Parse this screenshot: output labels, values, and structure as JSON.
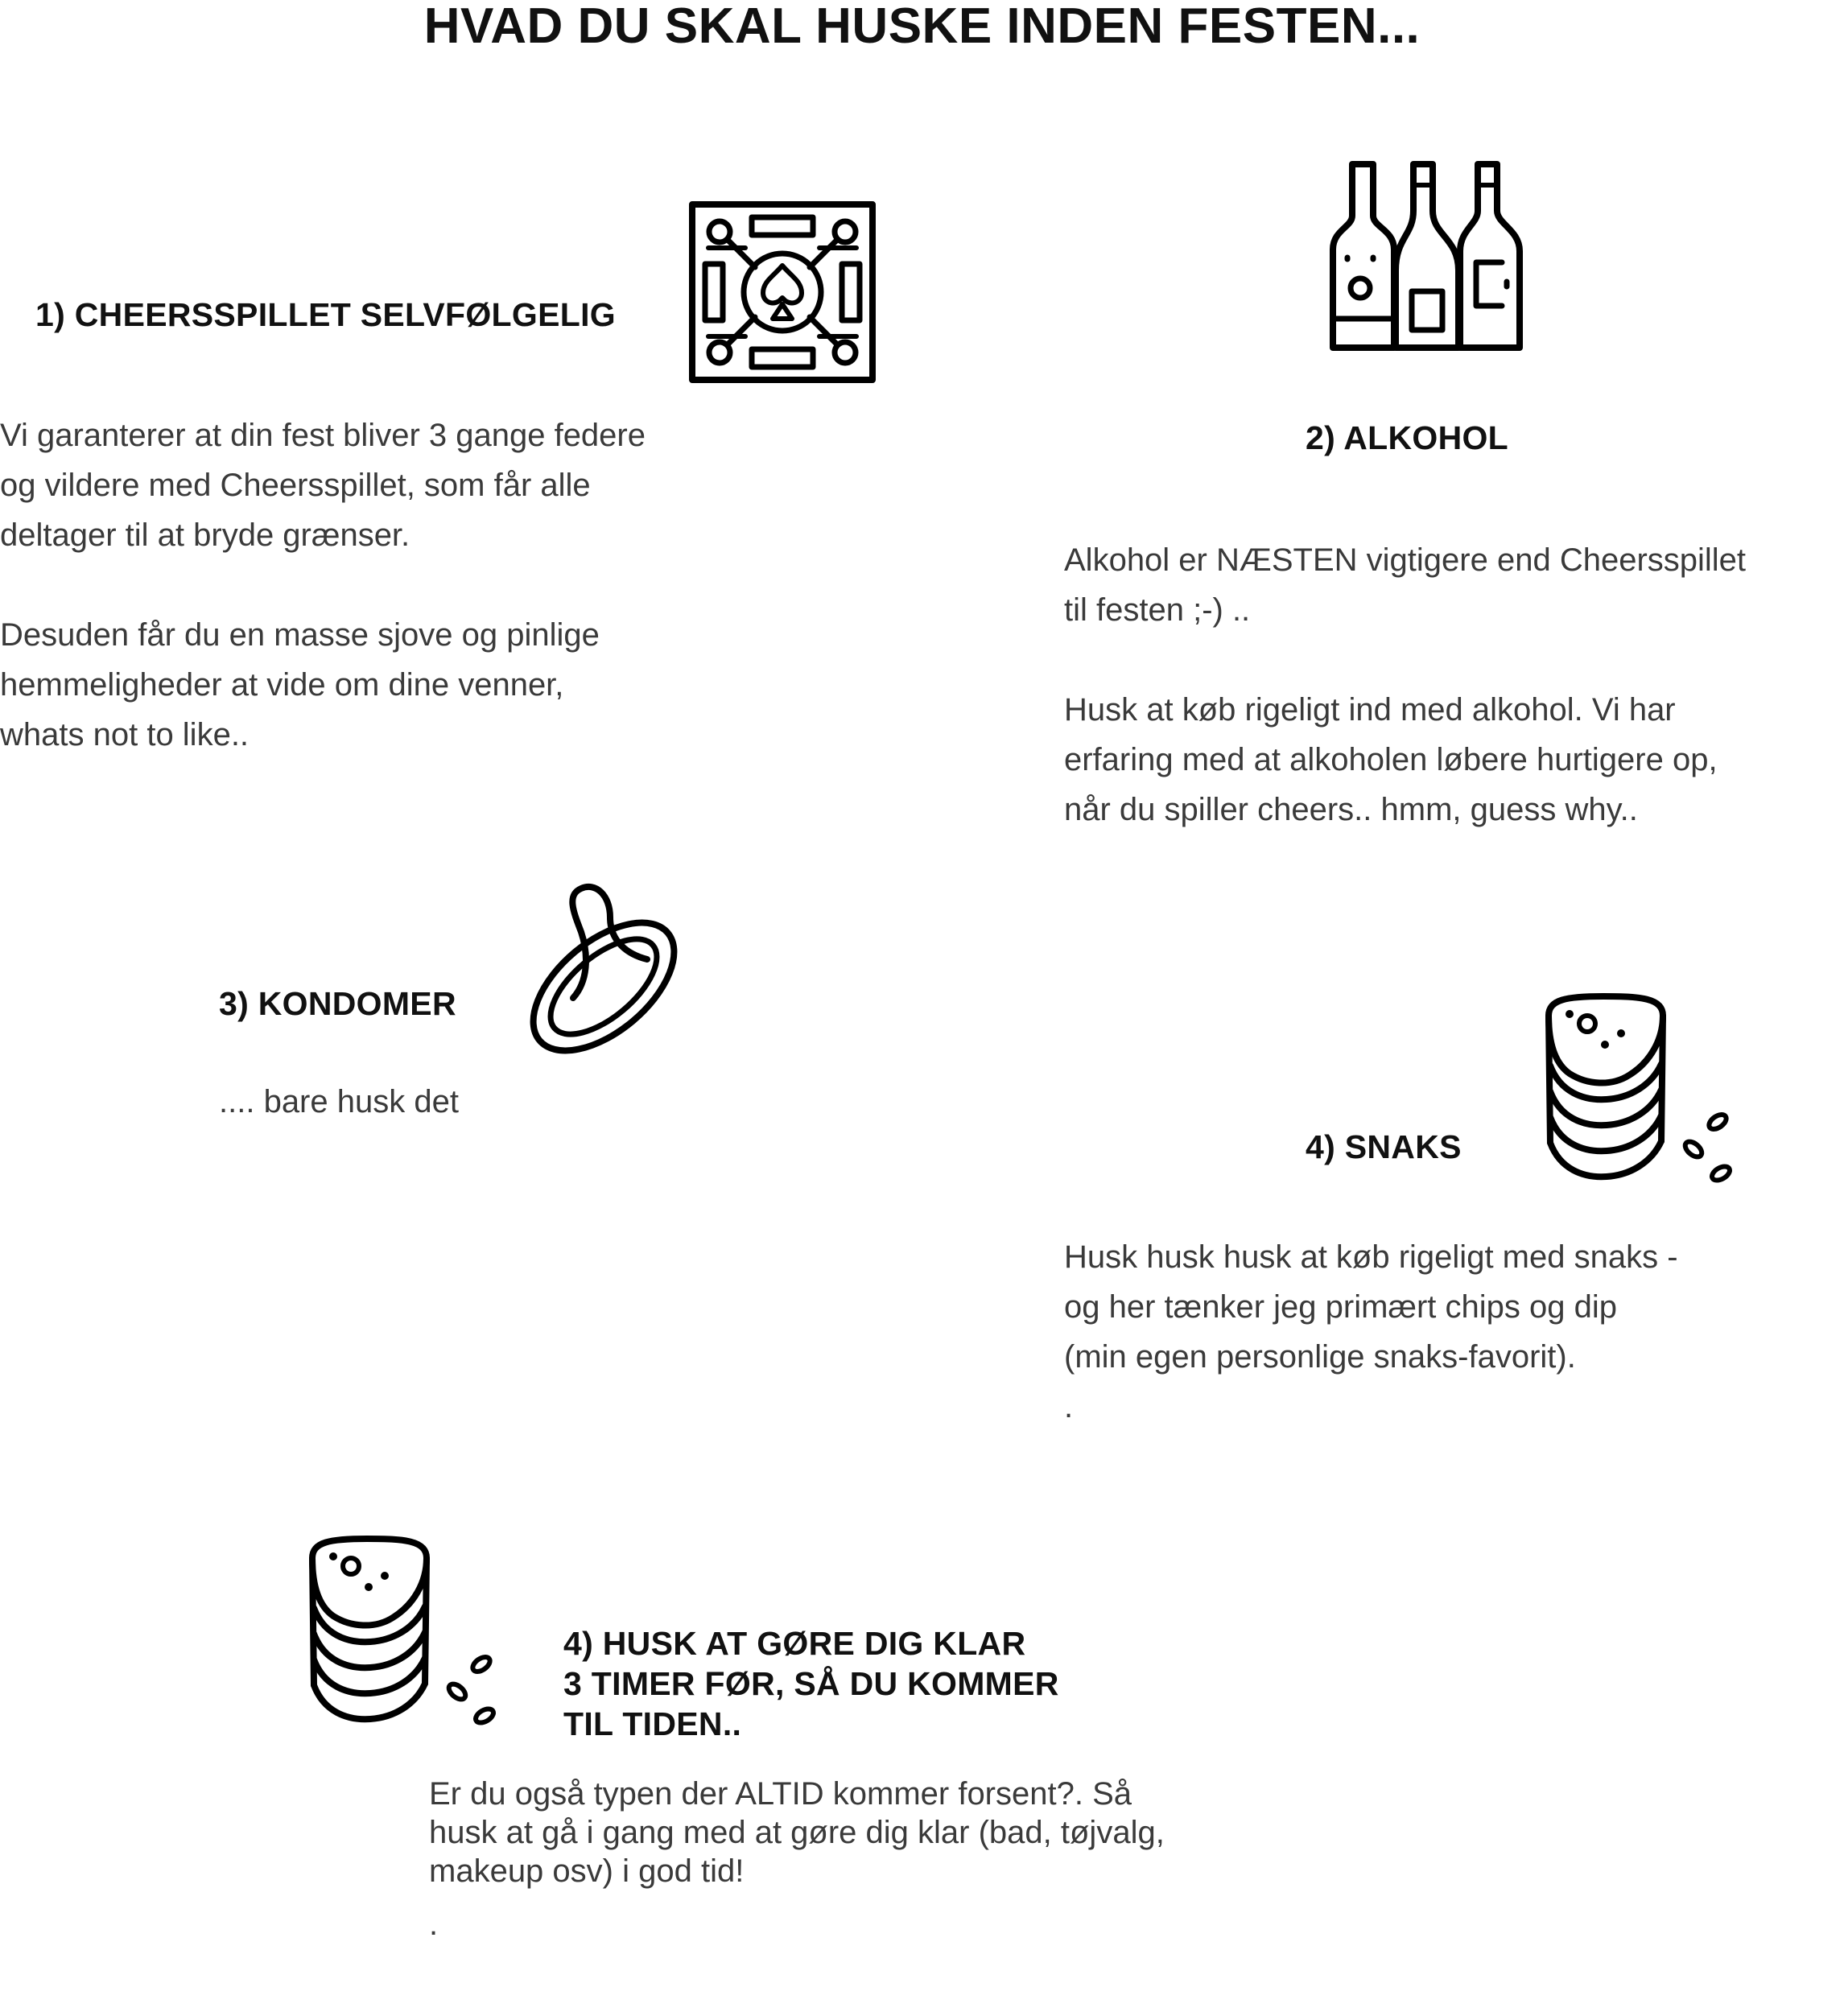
{
  "title": "HVAD DU SKAL HUSKE INDEN FESTEN...",
  "sections": [
    {
      "heading": "1) CHEERSSPILLET SELVFØLGELIG",
      "icon": "board-game-icon",
      "paragraphs": [
        [
          "Vi garanterer at din fest bliver 3 gange federe",
          "og vildere med Cheersspillet, som får alle",
          "deltager til at bryde grænser."
        ],
        [
          "Desuden får du en masse sjove og pinlige",
          "hemmeligheder at vide om dine venner,",
          "whats not to like.."
        ]
      ]
    },
    {
      "heading": "2) ALKOHOL",
      "icon": "bottles-icon",
      "paragraphs": [
        [
          "Alkohol er NÆSTEN vigtigere end Cheersspillet",
          "til festen ;-) .."
        ],
        [
          "Husk at køb rigeligt ind med alkohol. Vi har",
          "erfaring med at alkoholen løbere hurtigere op,",
          "når du spiller cheers.. hmm, guess why.."
        ]
      ]
    },
    {
      "heading": "3) KONDOMER",
      "icon": "condom-icon",
      "paragraphs": [
        [
          ".... bare husk det"
        ]
      ]
    },
    {
      "heading": "4) SNAKS",
      "icon": "chips-stack-icon",
      "paragraphs": [
        [
          "Husk husk husk at køb rigeligt med snaks -",
          "og her tænker jeg primært chips og dip",
          "(min egen personlige snaks-favorit).",
          "."
        ]
      ]
    },
    {
      "heading_lines": [
        "4) HUSK AT GØRE DIG KLAR",
        "3 TIMER FØR, SÅ DU KOMMER",
        "TIL TIDEN.."
      ],
      "icon": "chips-stack-icon",
      "paragraphs": [
        [
          "Er du også typen der ALTID kommer forsent?. Så",
          "husk at gå i gang med at gøre dig klar (bad, tøjvalg,",
          "makeup osv) i god tid!"
        ],
        [
          "."
        ]
      ]
    }
  ]
}
